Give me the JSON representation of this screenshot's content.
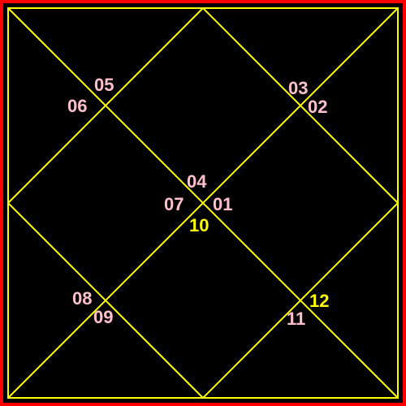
{
  "colors": {
    "background": "#000000",
    "outer_border": "#ff0000",
    "lines": "#ffff00",
    "label_default": "#ffc0cb",
    "label_highlight": "#ffff00"
  },
  "labels": [
    {
      "id": "l05",
      "text": "05",
      "style": "default"
    },
    {
      "id": "l06",
      "text": "06",
      "style": "default"
    },
    {
      "id": "l03",
      "text": "03",
      "style": "default"
    },
    {
      "id": "l02",
      "text": "02",
      "style": "default"
    },
    {
      "id": "l04",
      "text": "04",
      "style": "default"
    },
    {
      "id": "l07",
      "text": "07",
      "style": "default"
    },
    {
      "id": "l01",
      "text": "01",
      "style": "default"
    },
    {
      "id": "l10",
      "text": "10",
      "style": "highlight"
    },
    {
      "id": "l08",
      "text": "08",
      "style": "default"
    },
    {
      "id": "l09",
      "text": "09",
      "style": "default"
    },
    {
      "id": "l12",
      "text": "12",
      "style": "highlight"
    },
    {
      "id": "l11",
      "text": "11",
      "style": "default"
    }
  ]
}
